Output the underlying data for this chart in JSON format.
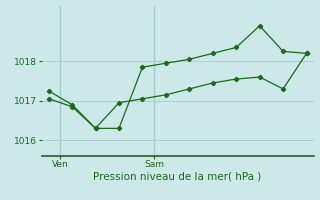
{
  "background_color": "#cce8e8",
  "grid_color": "#aacfcf",
  "line_color": "#1a6b1a",
  "xlabel": "Pression niveau de la mer( hPa )",
  "ylim": [
    1015.6,
    1019.4
  ],
  "yticks": [
    1016,
    1017,
    1018
  ],
  "series1_x": [
    0,
    1,
    2,
    3,
    4,
    5,
    6,
    7,
    8,
    9,
    10,
    11
  ],
  "series1_y": [
    1017.25,
    1016.9,
    1016.3,
    1016.3,
    1017.85,
    1017.95,
    1018.05,
    1018.2,
    1018.35,
    1018.9,
    1018.25,
    1018.2
  ],
  "series2_x": [
    0,
    1,
    2,
    3,
    4,
    5,
    6,
    7,
    8,
    9,
    10,
    11
  ],
  "series2_y": [
    1017.05,
    1016.85,
    1016.3,
    1016.95,
    1017.05,
    1017.15,
    1017.3,
    1017.45,
    1017.55,
    1017.6,
    1017.3,
    1018.2
  ],
  "xtick_labels": [
    "Ven",
    "Sam"
  ],
  "xtick_pos": [
    0.5,
    4.5
  ],
  "ven_line_x": 0.5,
  "sam_line_x": 4.5,
  "xlabel_fontsize": 7.5,
  "ytick_fontsize": 6.5,
  "xtick_fontsize": 6.5
}
